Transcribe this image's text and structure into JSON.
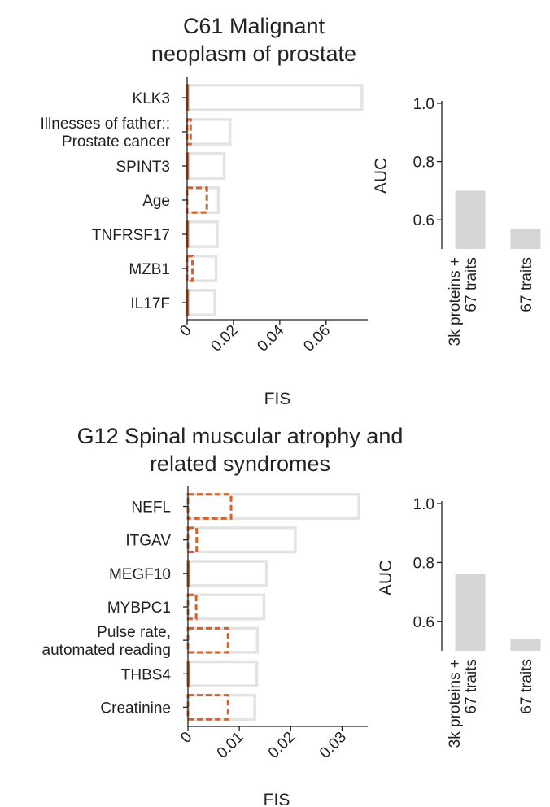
{
  "chart_data": [
    {
      "type": "bar",
      "orientation": "horizontal",
      "title_lines": [
        "C61 Malignant",
        "neoplasm of prostate"
      ],
      "xlabel": "FIS",
      "categories": [
        [
          "KLK3"
        ],
        [
          "Illnesses of father::",
          "Prostate cancer"
        ],
        [
          "SPINT3"
        ],
        [
          "Age"
        ],
        [
          "TNFRSF17"
        ],
        [
          "MZB1"
        ],
        [
          "IL17F"
        ]
      ],
      "series": [
        {
          "name": "3k proteins + 67 traits",
          "style": "light grey outline",
          "values": [
            0.0755,
            0.0185,
            0.016,
            0.0135,
            0.013,
            0.0125,
            0.012
          ]
        },
        {
          "name": "67 traits",
          "style": "orange dashed outline",
          "values": [
            0.0003,
            0.0015,
            0.0003,
            0.0085,
            0.0003,
            0.0023,
            0.0003
          ]
        }
      ],
      "xlim": [
        0,
        0.078
      ],
      "xticks": [
        0,
        0.02,
        0.04,
        0.06
      ],
      "xtick_labels": [
        "0",
        "0.02",
        "0.04",
        "0.06"
      ]
    },
    {
      "type": "bar",
      "orientation": "vertical",
      "ylabel": "AUC",
      "categories": [
        [
          "3k proteins +",
          "67 traits"
        ],
        [
          "67 traits"
        ]
      ],
      "values": [
        0.7,
        0.57
      ],
      "ylim": [
        0.5,
        1.0
      ],
      "yticks": [
        0.6,
        0.8,
        1.0
      ],
      "ytick_labels": [
        "0.6",
        "0.8",
        "1.0"
      ]
    },
    {
      "type": "bar",
      "orientation": "horizontal",
      "title_lines": [
        "G12 Spinal muscular atrophy and",
        "related syndromes"
      ],
      "xlabel": "FIS",
      "categories": [
        [
          "NEFL"
        ],
        [
          "ITGAV"
        ],
        [
          "MEGF10"
        ],
        [
          "MYBPC1"
        ],
        [
          "Pulse rate,",
          "automated reading"
        ],
        [
          "THBS4"
        ],
        [
          "Creatinine"
        ]
      ],
      "series": [
        {
          "name": "3k proteins + 67 traits",
          "style": "light grey outline",
          "values": [
            0.0333,
            0.0209,
            0.0153,
            0.0148,
            0.0135,
            0.0134,
            0.013
          ]
        },
        {
          "name": "67 traits",
          "style": "orange dashed outline",
          "values": [
            0.0084,
            0.0017,
            0.0002,
            0.0016,
            0.0078,
            0.0002,
            0.0078
          ]
        }
      ],
      "xlim": [
        0,
        0.035
      ],
      "xticks": [
        0,
        0.01,
        0.02,
        0.03
      ],
      "xtick_labels": [
        "0",
        "0.01",
        "0.02",
        "0.03"
      ]
    },
    {
      "type": "bar",
      "orientation": "vertical",
      "ylabel": "AUC",
      "categories": [
        [
          "3k proteins +",
          "67 traits"
        ],
        [
          "67 traits"
        ]
      ],
      "values": [
        0.76,
        0.54
      ],
      "ylim": [
        0.5,
        1.0
      ],
      "yticks": [
        0.6,
        0.8,
        1.0
      ],
      "ytick_labels": [
        "0.6",
        "0.8",
        "1.0"
      ]
    }
  ],
  "colors": {
    "full_model_outline": "#e3e3e3",
    "traits_only_outline": "#d2622a",
    "auc_bar": "#d6d6d6",
    "axis": "#222222",
    "text": "#222222"
  }
}
